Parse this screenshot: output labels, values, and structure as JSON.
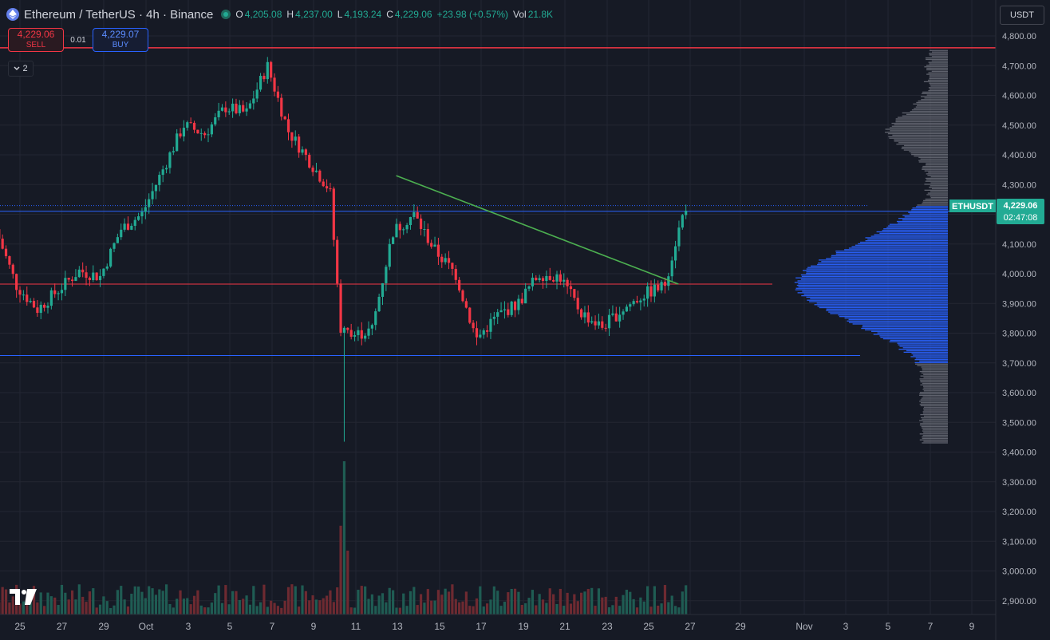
{
  "header": {
    "title": "Ethereum / TetherUS · 4h · Binance",
    "open_label": "O",
    "open": "4,205.08",
    "high_label": "H",
    "high": "4,237.00",
    "low_label": "L",
    "low": "4,193.24",
    "close_label": "C",
    "close": "4,229.06",
    "change": "+23.98 (+0.57%)",
    "vol_label": "Vol",
    "vol": "21.8K"
  },
  "trade": {
    "sell_price": "4,229.06",
    "sell_label": "SELL",
    "spread": "0.01",
    "buy_price": "4,229.07",
    "buy_label": "BUY"
  },
  "indicator_toggle": {
    "count": "2"
  },
  "currency": "USDT",
  "price_tag": {
    "symbol": "ETHUSDT",
    "price": "4,229.06",
    "countdown": "02:47:08"
  },
  "y_axis_labels": [
    "4,800.00",
    "4,700.00",
    "4,600.00",
    "4,500.00",
    "4,400.00",
    "4,300.00",
    "4,200.00",
    "4,100.00",
    "4,000.00",
    "3,900.00",
    "3,800.00",
    "3,700.00",
    "3,600.00",
    "3,500.00",
    "3,400.00",
    "3,300.00",
    "3,200.00",
    "3,100.00",
    "3,000.00",
    "2,900.00"
  ],
  "x_axis_labels": [
    "25",
    "27",
    "29",
    "Oct",
    "3",
    "5",
    "7",
    "9",
    "11",
    "13",
    "15",
    "17",
    "19",
    "21",
    "23",
    "25",
    "27",
    "29",
    "Nov",
    "3",
    "5",
    "7",
    "9"
  ],
  "colors": {
    "up": "#22ab94",
    "down": "#f23645",
    "background": "#161a25",
    "grid": "#232632",
    "trendline": "#4caf50",
    "level_blue": "#2962ff",
    "profile_blue": "#2962ff",
    "profile_gray": "#787b86"
  },
  "chart_data": {
    "type": "candlestick",
    "interval": "4h",
    "ylim": [
      2850,
      4830
    ],
    "date_range": [
      "Sep 24",
      "Oct 27"
    ],
    "price_waypoints": [
      {
        "date": "Sep 24",
        "price": 4150
      },
      {
        "date": "Sep 25",
        "price": 3960
      },
      {
        "date": "Sep 26",
        "price": 3880
      },
      {
        "date": "Sep 28",
        "price": 4010
      },
      {
        "date": "Sep 29",
        "price": 3990
      },
      {
        "date": "Sep 30",
        "price": 4150
      },
      {
        "date": "Oct 1",
        "price": 4200
      },
      {
        "date": "Oct 2",
        "price": 4350
      },
      {
        "date": "Oct 3",
        "price": 4500
      },
      {
        "date": "Oct 4",
        "price": 4470
      },
      {
        "date": "Oct 5",
        "price": 4560
      },
      {
        "date": "Oct 6",
        "price": 4540
      },
      {
        "date": "Oct 7",
        "price": 4700
      },
      {
        "date": "Oct 8",
        "price": 4480
      },
      {
        "date": "Oct 9",
        "price": 4380
      },
      {
        "date": "Oct 10",
        "price": 4280
      },
      {
        "date": "Oct 10.5",
        "price": 3820
      },
      {
        "date": "Oct 11",
        "price": 3790
      },
      {
        "date": "Oct 12",
        "price": 3810
      },
      {
        "date": "Oct 13",
        "price": 4140
      },
      {
        "date": "Oct 14",
        "price": 4200
      },
      {
        "date": "Oct 15",
        "price": 4080
      },
      {
        "date": "Oct 16",
        "price": 4000
      },
      {
        "date": "Oct 17",
        "price": 3780
      },
      {
        "date": "Oct 18",
        "price": 3860
      },
      {
        "date": "Oct 19",
        "price": 3900
      },
      {
        "date": "Oct 20",
        "price": 4000
      },
      {
        "date": "Oct 21",
        "price": 3990
      },
      {
        "date": "Oct 22",
        "price": 3870
      },
      {
        "date": "Oct 23",
        "price": 3820
      },
      {
        "date": "Oct 24",
        "price": 3880
      },
      {
        "date": "Oct 25",
        "price": 3930
      },
      {
        "date": "Oct 26",
        "price": 3960
      },
      {
        "date": "Oct 26.5",
        "price": 4100
      },
      {
        "date": "Oct 27",
        "price": 4229.06
      }
    ],
    "capitulation_wick": {
      "date": "Oct 10",
      "low": 3435
    },
    "horizontal_levels": [
      {
        "price": 4760,
        "color": "#f23645"
      },
      {
        "price": 4229.06,
        "color": "#2962ff",
        "style": "dotted"
      },
      {
        "price": 4210,
        "color": "#2962ff"
      },
      {
        "price": 3965,
        "color": "#f23645"
      },
      {
        "price": 3725,
        "color": "#2962ff"
      }
    ],
    "trendline": {
      "from": {
        "date": "Oct 13",
        "price": 4330
      },
      "to": {
        "date": "Oct 26",
        "price": 3965
      }
    },
    "volume_profile": {
      "range": [
        3430,
        4750
      ],
      "poc": 3965
    },
    "volume_spike": {
      "date": "Oct 10"
    }
  }
}
